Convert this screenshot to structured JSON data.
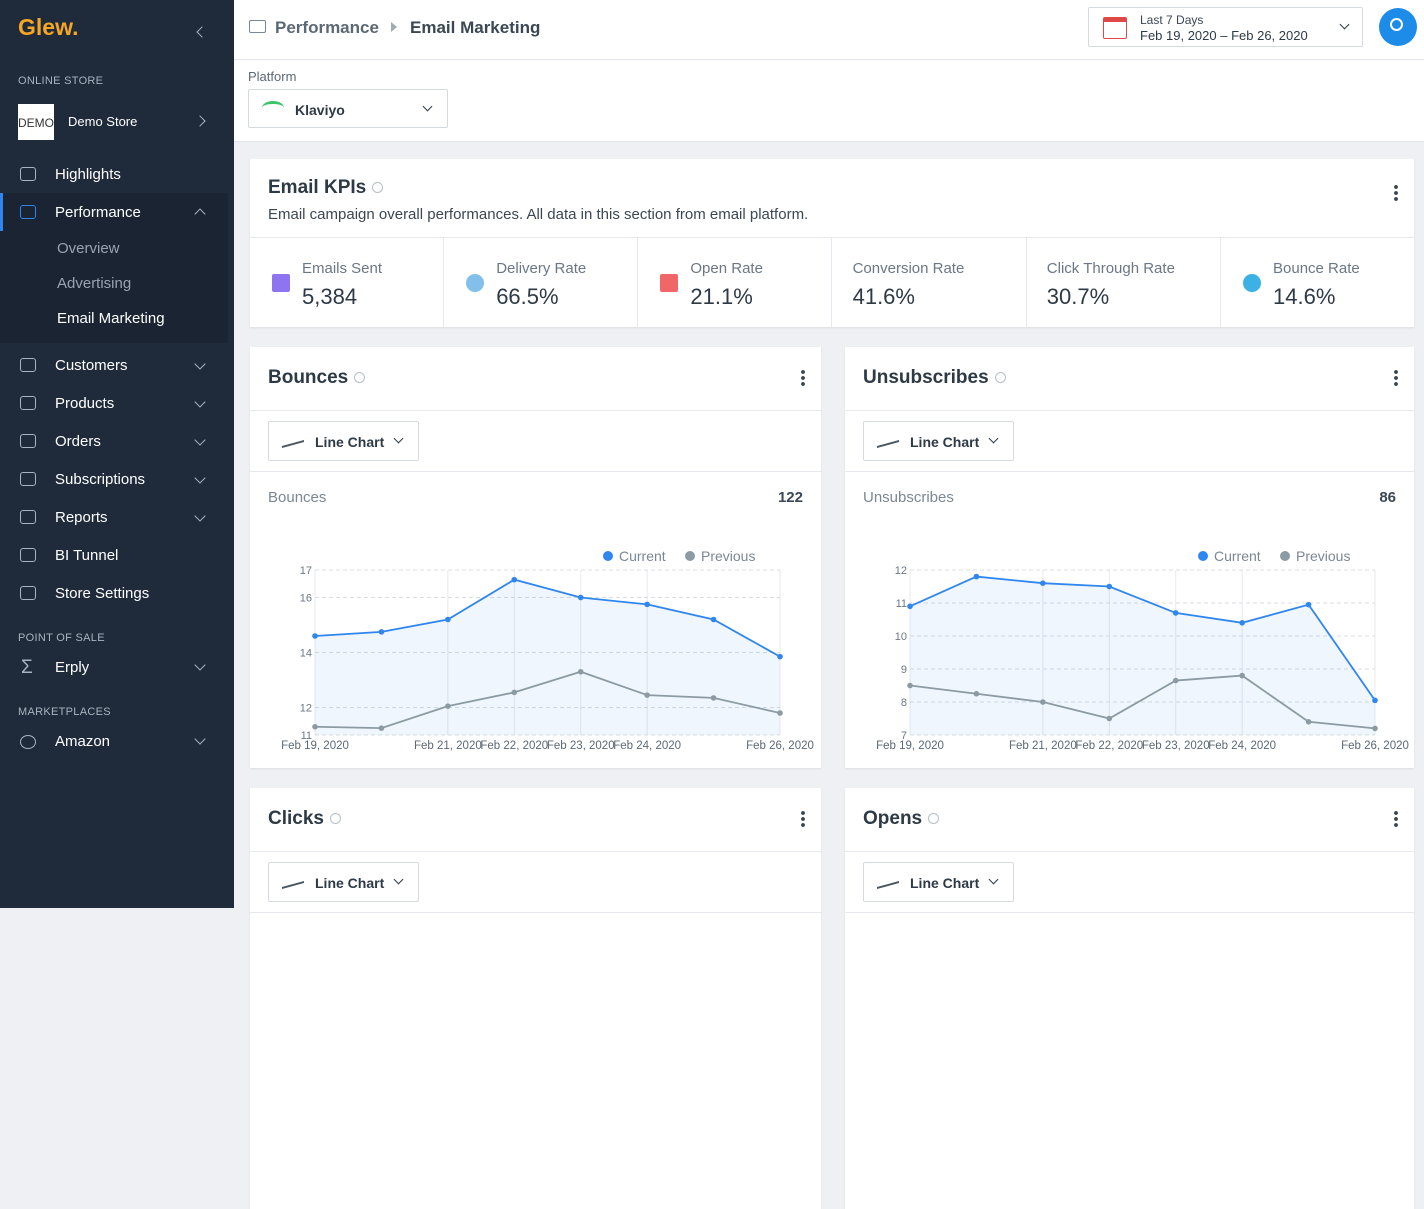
{
  "sidebar": {
    "logo": "Glew.",
    "store_heading": "ONLINE STORE",
    "store_thumb": "DEMO",
    "store_name": "Demo Store",
    "nav": [
      "Highlights",
      "Performance",
      "Customers",
      "Products",
      "Orders",
      "Subscriptions",
      "Reports",
      "BI Tunnel",
      "Store Settings"
    ],
    "performance_sub": [
      "Overview",
      "Advertising",
      "Email Marketing"
    ],
    "pos_heading": "POINT OF SALE",
    "pos_item": "Erply",
    "marketplaces_heading": "MARKETPLACES",
    "marketplace_item": "Amazon"
  },
  "header": {
    "breadcrumb": [
      "Performance",
      "Email Marketing"
    ],
    "date_range_label": "Last 7 Days",
    "date_range": "Feb 19, 2020 – Feb 26, 2020"
  },
  "platform": {
    "label": "Platform",
    "value": "Klaviyo"
  },
  "kpis": {
    "title": "Email KPIs",
    "description": "Email campaign overall performances. All data in this section from email platform.",
    "items": [
      {
        "label": "Emails Sent",
        "value": "5,384"
      },
      {
        "label": "Delivery Rate",
        "value": "66.5%"
      },
      {
        "label": "Open Rate",
        "value": "21.1%"
      },
      {
        "label": "Conversion Rate",
        "value": "41.6%"
      },
      {
        "label": "Click Through Rate",
        "value": "30.7%"
      },
      {
        "label": "Bounce Rate",
        "value": "14.6%"
      }
    ]
  },
  "chart_data": [
    {
      "type": "line",
      "title": "Bounces",
      "control": "Line Chart",
      "metric_label": "Bounces",
      "total": 122,
      "categories": [
        "Feb 19, 2020",
        null,
        "Feb 21, 2020",
        "Feb 22, 2020",
        "Feb 23, 2020",
        "Feb 24, 2020",
        null,
        "Feb 26, 2020"
      ],
      "ylim": [
        11,
        17
      ],
      "yticks": [
        11,
        12,
        14,
        16,
        17
      ],
      "series": [
        {
          "name": "Current",
          "color": "#2f86ee",
          "values": [
            14.6,
            14.75,
            15.2,
            16.65,
            16,
            15.75,
            15.2,
            13.85
          ]
        },
        {
          "name": "Previous",
          "color": "#8c9ba3",
          "values": [
            11.3,
            11.25,
            12.05,
            12.55,
            13.3,
            12.45,
            12.35,
            11.8
          ]
        }
      ]
    },
    {
      "type": "line",
      "title": "Unsubscribes",
      "control": "Line Chart",
      "metric_label": "Unsubscribes",
      "total": 86,
      "categories": [
        "Feb 19, 2020",
        null,
        "Feb 21, 2020",
        "Feb 22, 2020",
        "Feb 23, 2020",
        "Feb 24, 2020",
        null,
        "Feb 26, 2020"
      ],
      "ylim": [
        7,
        12
      ],
      "yticks": [
        7,
        8,
        9,
        10,
        11,
        12
      ],
      "series": [
        {
          "name": "Current",
          "color": "#2f86ee",
          "values": [
            10.9,
            11.8,
            11.6,
            11.5,
            10.7,
            10.4,
            10.95,
            8.05
          ]
        },
        {
          "name": "Previous",
          "color": "#8c9ba3",
          "values": [
            8.5,
            8.25,
            8,
            7.5,
            8.65,
            8.8,
            7.4,
            7.2
          ]
        }
      ]
    }
  ],
  "more_cards": [
    {
      "title": "Clicks",
      "control": "Line Chart"
    },
    {
      "title": "Opens",
      "control": "Line Chart"
    }
  ]
}
